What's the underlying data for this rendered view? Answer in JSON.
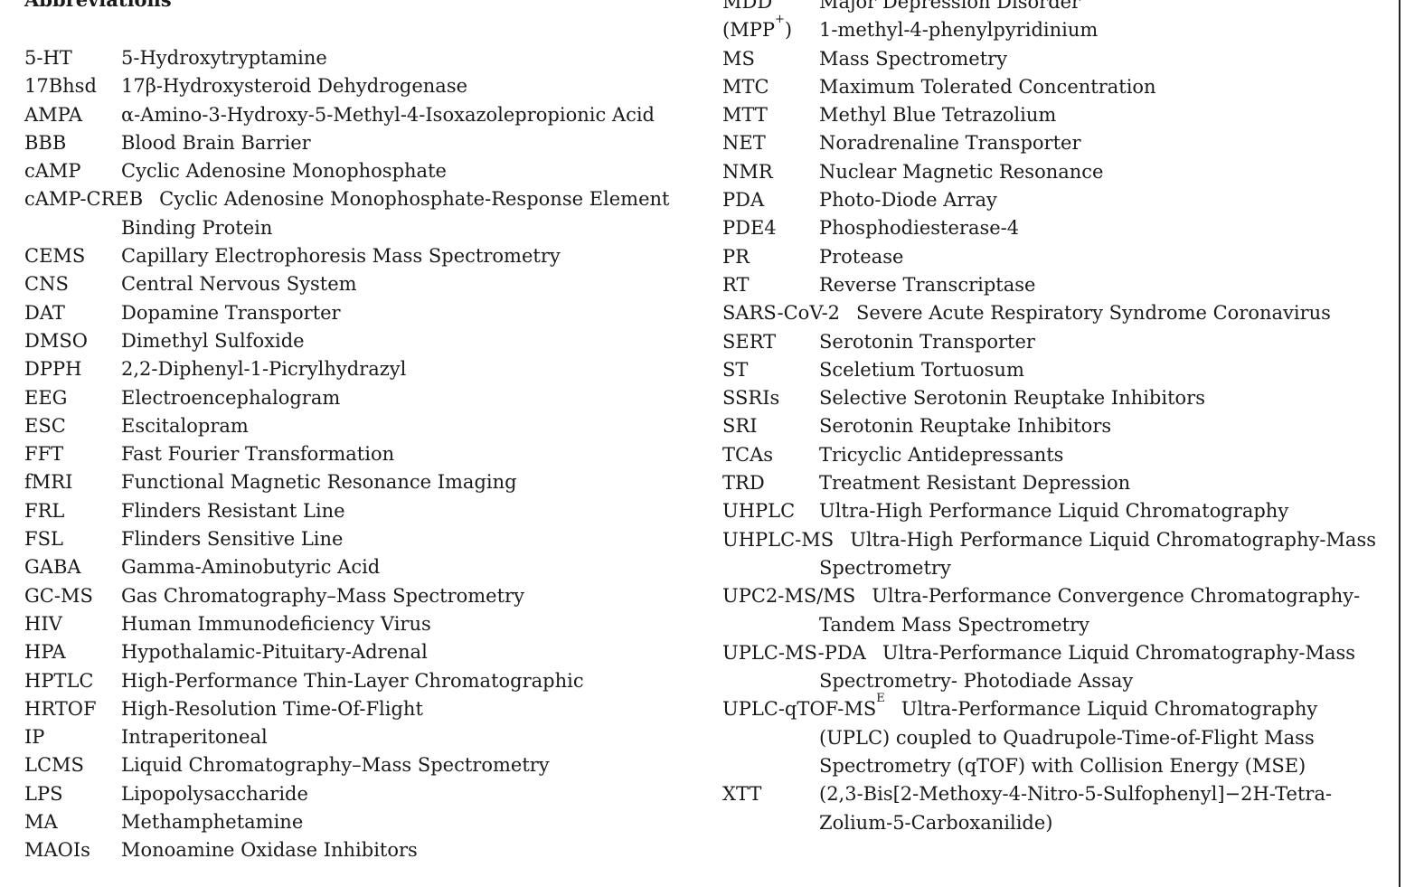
{
  "heading": "Abbreviations",
  "left": [
    {
      "abbr": "5-HT",
      "def": "5-Hydroxytryptamine"
    },
    {
      "abbr": "17Bhsd",
      "def": "17β-Hydroxysteroid Dehydrogenase"
    },
    {
      "abbr": "AMPA",
      "def": "α-Amino-3-Hydroxy-5-Methyl-4-Isoxazolepropionic Acid"
    },
    {
      "abbr": "BBB",
      "def": "Blood Brain Barrier"
    },
    {
      "abbr": "cAMP",
      "def": "Cyclic Adenosine Monophosphate"
    },
    {
      "abbr": "cAMP-CREB",
      "def": "Cyclic Adenosine Monophosphate-Response Element Binding Protein",
      "long": true
    },
    {
      "abbr": "CEMS",
      "def": "Capillary Electrophoresis Mass Spectrometry"
    },
    {
      "abbr": "CNS",
      "def": "Central Nervous System"
    },
    {
      "abbr": "DAT",
      "def": "Dopamine Transporter"
    },
    {
      "abbr": "DMSO",
      "def": "Dimethyl Sulfoxide"
    },
    {
      "abbr": "DPPH",
      "def": "2,2-Diphenyl-1-Picrylhydrazyl"
    },
    {
      "abbr": "EEG",
      "def": "Electroencephalogram"
    },
    {
      "abbr": "ESC",
      "def": "Escitalopram"
    },
    {
      "abbr": "FFT",
      "def": "Fast Fourier Transformation"
    },
    {
      "abbr": "fMRI",
      "def": "Functional Magnetic Resonance Imaging"
    },
    {
      "abbr": "FRL",
      "def": "Flinders Resistant Line"
    },
    {
      "abbr": "FSL",
      "def": "Flinders Sensitive Line"
    },
    {
      "abbr": "GABA",
      "def": "Gamma-Aminobutyric Acid"
    },
    {
      "abbr": "GC-MS",
      "def": "Gas Chromatography–Mass Spectrometry"
    },
    {
      "abbr": "HIV",
      "def": "Human Immunodeficiency Virus"
    },
    {
      "abbr": "HPA",
      "def": "Hypothalamic-Pituitary-Adrenal"
    },
    {
      "abbr": "HPTLC",
      "def": "High-Performance Thin-Layer Chromatographic"
    },
    {
      "abbr": "HRTOF",
      "def": "High-Resolution Time-Of-Flight"
    },
    {
      "abbr": "IP",
      "def": "Intraperitoneal"
    },
    {
      "abbr": "LCMS",
      "def": "Liquid Chromatography–Mass Spectrometry"
    },
    {
      "abbr": "LPS",
      "def": "Lipopolysaccharide"
    },
    {
      "abbr": "MA",
      "def": "Methamphetamine"
    },
    {
      "abbr": "MAOIs",
      "def": "Monoamine Oxidase Inhibitors"
    }
  ],
  "right": [
    {
      "abbr": "MDD",
      "def": "Major Depression Disorder"
    },
    {
      "abbr": "(MPP",
      "sup": "+",
      "abbr_tail": ")",
      "def": "1-methyl-4-phenylpyridinium"
    },
    {
      "abbr": "MS",
      "def": "Mass Spectrometry"
    },
    {
      "abbr": "MTC",
      "def": "Maximum Tolerated Concentration"
    },
    {
      "abbr": "MTT",
      "def": "Methyl Blue Tetrazolium"
    },
    {
      "abbr": "NET",
      "def": "Noradrenaline Transporter"
    },
    {
      "abbr": "NMR",
      "def": "Nuclear Magnetic Resonance"
    },
    {
      "abbr": "PDA",
      "def": "Photo-Diode Array"
    },
    {
      "abbr": "PDE4",
      "def": "Phosphodiesterase-4"
    },
    {
      "abbr": "PR",
      "def": "Protease"
    },
    {
      "abbr": "RT",
      "def": "Reverse Transcriptase"
    },
    {
      "abbr": "SARS-CoV-2",
      "def": "Severe Acute Respiratory Syndrome Coronavirus",
      "long": true
    },
    {
      "abbr": "SERT",
      "def": "Serotonin Transporter"
    },
    {
      "abbr": "ST",
      "def": "Sceletium Tortuosum"
    },
    {
      "abbr": "SSRIs",
      "def": "Selective Serotonin Reuptake Inhibitors"
    },
    {
      "abbr": "SRI",
      "def": "Serotonin Reuptake Inhibitors"
    },
    {
      "abbr": "TCAs",
      "def": "Tricyclic Antidepressants"
    },
    {
      "abbr": "TRD",
      "def": "Treatment Resistant Depression"
    },
    {
      "abbr": "UHPLC",
      "def": "Ultra-High Performance Liquid Chromatography"
    },
    {
      "abbr": "UHPLC-MS",
      "def": "Ultra-High Performance Liquid Chromatography-Mass Spectrometry",
      "long": true
    },
    {
      "abbr": "UPC2-MS/MS",
      "def": "Ultra-Performance Convergence Chromatography-Tandem Mass Spectrometry",
      "long": true
    },
    {
      "abbr": "UPLC-MS-PDA",
      "def": "Ultra-Performance Liquid Chromatography-Mass Spectrometry- Photodiade Assay",
      "long": true
    },
    {
      "abbr": "UPLC-qTOF-MS",
      "sup": "E",
      "def": "Ultra-Performance Liquid Chromatography (UPLC) coupled to Quadrupole-Time-of-Flight Mass Spectrometry (qTOF) with Collision Energy (MSE)",
      "long": true
    },
    {
      "abbr": "XTT",
      "def": "(2,3-Bis[2-Methoxy-4-Nitro-5-Sulfophenyl]−2H-Tetra-Zolium-5-Carboxanilide)"
    }
  ]
}
